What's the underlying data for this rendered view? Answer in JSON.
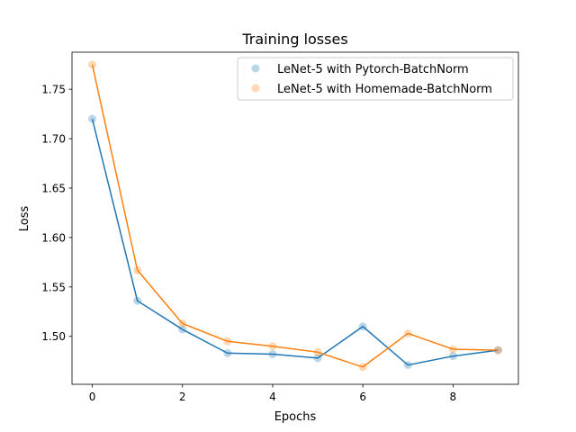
{
  "chart_data": {
    "type": "line",
    "title": "Training losses",
    "xlabel": "Epochs",
    "ylabel": "Loss",
    "x": [
      0,
      1,
      2,
      3,
      4,
      5,
      6,
      7,
      8,
      9
    ],
    "xlim": [
      -0.45,
      9.45
    ],
    "ylim": [
      1.4515,
      1.7875
    ],
    "xticks": [
      0,
      2,
      4,
      6,
      8
    ],
    "yticks": [
      1.5,
      1.55,
      1.6,
      1.65,
      1.7,
      1.75
    ],
    "xtick_labels": [
      "0",
      "2",
      "4",
      "6",
      "8"
    ],
    "ytick_labels": [
      "1.50",
      "1.55",
      "1.60",
      "1.65",
      "1.70",
      "1.75"
    ],
    "grid": false,
    "legend_position": "top-right",
    "series": [
      {
        "name": "LeNet-5 with Pytorch-BatchNorm",
        "color": "#1f77b4",
        "values": [
          1.72,
          1.536,
          1.507,
          1.483,
          1.482,
          1.478,
          1.51,
          1.471,
          1.48,
          1.486
        ]
      },
      {
        "name": "LeNet-5 with Homemade-BatchNorm",
        "color": "#ff7f0e",
        "values": [
          1.775,
          1.567,
          1.513,
          1.495,
          1.49,
          1.484,
          1.469,
          1.503,
          1.487,
          1.486
        ]
      }
    ]
  }
}
